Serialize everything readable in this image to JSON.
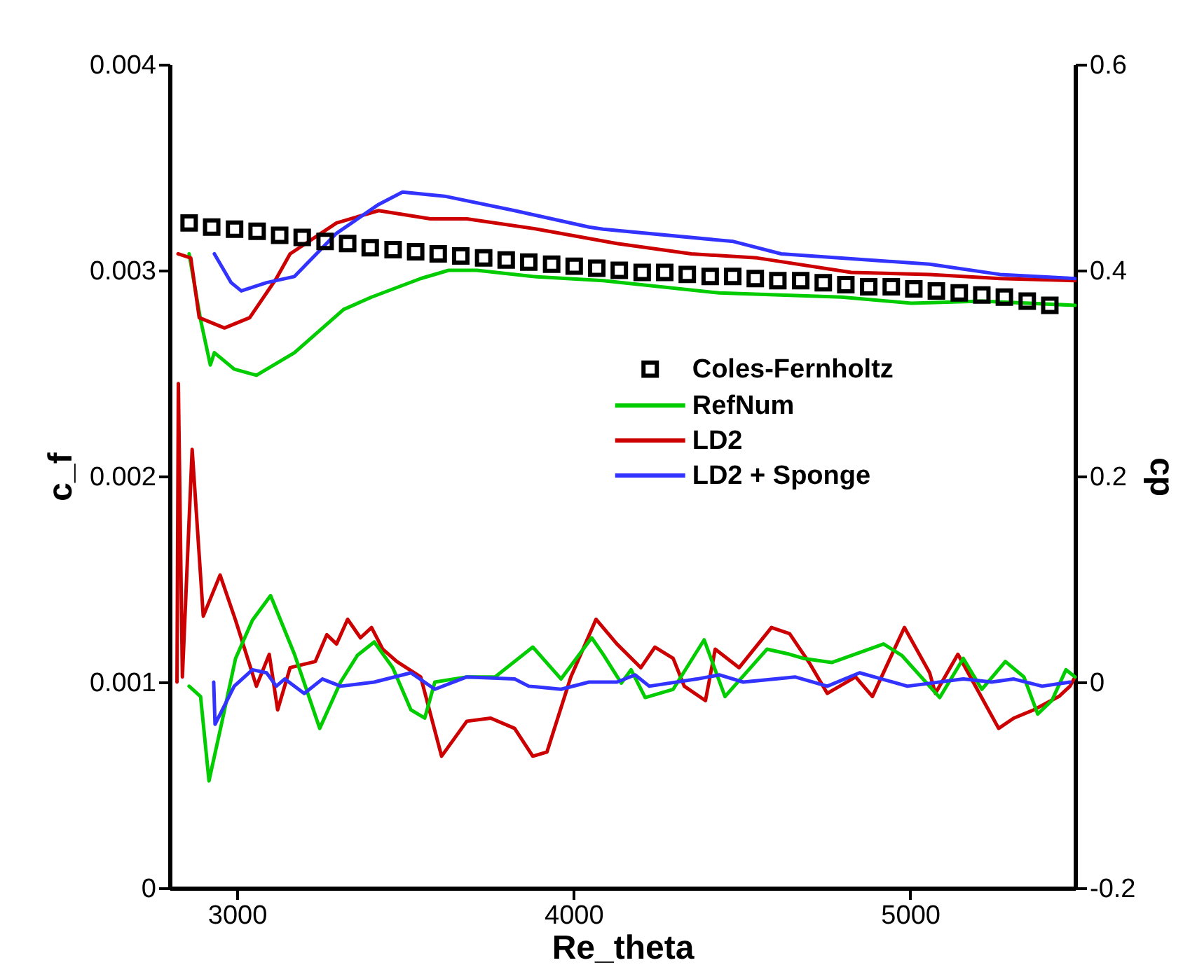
{
  "chart_data": {
    "type": "line",
    "xlabel": "Re_theta",
    "ylabel": "c_f",
    "y2label": "cp",
    "xlim": [
      2800,
      5490
    ],
    "xticks": [
      3000,
      4000,
      5000
    ],
    "ylim": [
      0,
      0.004
    ],
    "yticks": [
      0,
      0.001,
      0.002,
      0.003,
      0.004
    ],
    "y2lim": [
      -0.2,
      0.6
    ],
    "y2ticks": [
      -0.2,
      0,
      0.2,
      0.4,
      0.6
    ],
    "grid": false,
    "legend": "right",
    "series": [
      {
        "name": "Coles-Fernholtz",
        "type": "scatter",
        "marker": "square",
        "color": "#000000",
        "x": [
          2858,
          2925,
          2993,
          3060,
          3127,
          3194,
          3262,
          3329,
          3396,
          3464,
          3531,
          3598,
          3665,
          3733,
          3800,
          3867,
          3935,
          4002,
          4069,
          4136,
          4204,
          4271,
          4338,
          4406,
          4473,
          4540,
          4607,
          4675,
          4742,
          4809,
          4877,
          4944,
          5011,
          5078,
          5146,
          5213,
          5280,
          5348,
          5415
        ],
        "values": [
          0.00323,
          0.00321,
          0.0032,
          0.00319,
          0.00317,
          0.00316,
          0.00314,
          0.00313,
          0.00311,
          0.0031,
          0.00309,
          0.00308,
          0.00307,
          0.00306,
          0.00305,
          0.00304,
          0.00303,
          0.00302,
          0.00301,
          0.003,
          0.00299,
          0.00299,
          0.00298,
          0.00297,
          0.00297,
          0.00296,
          0.00295,
          0.00295,
          0.00294,
          0.00293,
          0.00292,
          0.00292,
          0.00291,
          0.0029,
          0.00289,
          0.00288,
          0.00287,
          0.00285,
          0.00283
        ]
      },
      {
        "name": "RefNum",
        "type": "line",
        "color": "#00cc00",
        "x": [
          2858,
          2892,
          2921,
          2933,
          2992,
          3058,
          3171,
          3317,
          3400,
          3546,
          3629,
          3713,
          3879,
          4088,
          4433,
          4796,
          5004,
          5213,
          5490
        ],
        "values": [
          0.00308,
          0.00276,
          0.00254,
          0.0026,
          0.00252,
          0.00249,
          0.0026,
          0.00281,
          0.00287,
          0.00296,
          0.003,
          0.003,
          0.00297,
          0.00295,
          0.00289,
          0.00287,
          0.00284,
          0.00285,
          0.00283
        ]
      },
      {
        "name": "LD2",
        "type": "line",
        "color": "#cc0000",
        "x": [
          2825,
          2863,
          2888,
          2963,
          3038,
          3117,
          3158,
          3296,
          3421,
          3575,
          3683,
          3892,
          4129,
          4350,
          4546,
          4825,
          5058,
          5267,
          5490
        ],
        "values": [
          0.00308,
          0.00306,
          0.00277,
          0.00272,
          0.00277,
          0.00296,
          0.00308,
          0.00323,
          0.00329,
          0.00325,
          0.00325,
          0.0032,
          0.00313,
          0.00308,
          0.00306,
          0.00299,
          0.00298,
          0.00296,
          0.00295
        ]
      },
      {
        "name": "LD2 + Sponge",
        "type": "line",
        "color": "#3333ff",
        "x": [
          2933,
          2983,
          3013,
          3088,
          3171,
          3296,
          3421,
          3492,
          3617,
          3825,
          4046,
          4088,
          4475,
          4617,
          5058,
          5267,
          5490
        ],
        "values": [
          0.00308,
          0.00294,
          0.0029,
          0.00294,
          0.00297,
          0.00318,
          0.00332,
          0.00338,
          0.00336,
          0.00329,
          0.00321,
          0.0032,
          0.00314,
          0.00308,
          0.00303,
          0.00298,
          0.00296
        ]
      },
      {
        "type": "line",
        "axis": "y2",
        "color": "#cc0000",
        "x": [
          2822,
          2826,
          2838,
          2867,
          2900,
          2950,
          2996,
          3058,
          3096,
          3121,
          3158,
          3233,
          3267,
          3296,
          3329,
          3367,
          3400,
          3433,
          3475,
          3546,
          3608,
          3683,
          3754,
          3825,
          3879,
          3921,
          3992,
          4067,
          4129,
          4200,
          4242,
          4296,
          4329,
          4392,
          4421,
          4492,
          4588,
          4642,
          4700,
          4754,
          4838,
          4888,
          4983,
          5058,
          5075,
          5142,
          5263,
          5308,
          5367,
          5442,
          5475,
          5490
        ],
        "values": [
          0,
          0.29,
          0.005,
          0.226,
          0.064,
          0.104,
          0.06,
          -0.004,
          0.027,
          -0.027,
          0.014,
          0.02,
          0.046,
          0.037,
          0.061,
          0.043,
          0.053,
          0.032,
          0.02,
          0.005,
          -0.072,
          -0.038,
          -0.035,
          -0.045,
          -0.072,
          -0.068,
          0.005,
          0.061,
          0.037,
          0.014,
          0.034,
          0.023,
          -0.004,
          -0.018,
          0.032,
          0.014,
          0.053,
          0.047,
          0.019,
          -0.011,
          0.005,
          -0.014,
          0.053,
          0.009,
          -0.011,
          0.027,
          -0.045,
          -0.035,
          -0.027,
          -0.014,
          -0.004,
          0.005
        ]
      },
      {
        "type": "line",
        "axis": "y2",
        "color": "#00cc00",
        "x": [
          2858,
          2892,
          2917,
          2954,
          2996,
          3046,
          3100,
          3171,
          3246,
          3308,
          3358,
          3408,
          3463,
          3517,
          3558,
          3588,
          3683,
          3767,
          3879,
          3963,
          4054,
          4088,
          4142,
          4171,
          4213,
          4296,
          4388,
          4450,
          4575,
          4642,
          4683,
          4767,
          4921,
          4975,
          5088,
          5158,
          5213,
          5283,
          5338,
          5379,
          5421,
          5463,
          5490
        ],
        "values": [
          -0.004,
          -0.014,
          -0.096,
          -0.041,
          0.023,
          0.06,
          0.084,
          0.027,
          -0.045,
          0,
          0.026,
          0.039,
          0.014,
          -0.027,
          -0.035,
          0,
          0.005,
          0.005,
          0.034,
          0.003,
          0.043,
          0.027,
          -0.001,
          0.012,
          -0.015,
          -0.007,
          0.041,
          -0.014,
          0.032,
          0.027,
          0.023,
          0.019,
          0.037,
          0.026,
          -0.015,
          0.023,
          -0.007,
          0.02,
          0.005,
          -0.031,
          -0.018,
          0.012,
          0.005
        ]
      },
      {
        "type": "line",
        "axis": "y2",
        "color": "#3333ff",
        "x": [
          2931,
          2935,
          2992,
          3046,
          3088,
          3117,
          3142,
          3200,
          3254,
          3308,
          3408,
          3517,
          3588,
          3683,
          3825,
          3867,
          3963,
          4046,
          4129,
          4183,
          4225,
          4367,
          4433,
          4504,
          4658,
          4754,
          4850,
          4992,
          5158,
          5242,
          5308,
          5392,
          5475
        ],
        "values": [
          0,
          -0.041,
          -0.004,
          0.012,
          0.009,
          -0.004,
          0.003,
          -0.011,
          0.003,
          -0.004,
          0,
          0.009,
          -0.007,
          0.005,
          0.003,
          -0.004,
          -0.007,
          0,
          0,
          0.007,
          -0.004,
          0.003,
          0.007,
          0,
          0.005,
          -0.004,
          0.009,
          -0.004,
          0.003,
          0,
          0.003,
          -0.004,
          0
        ]
      }
    ]
  }
}
